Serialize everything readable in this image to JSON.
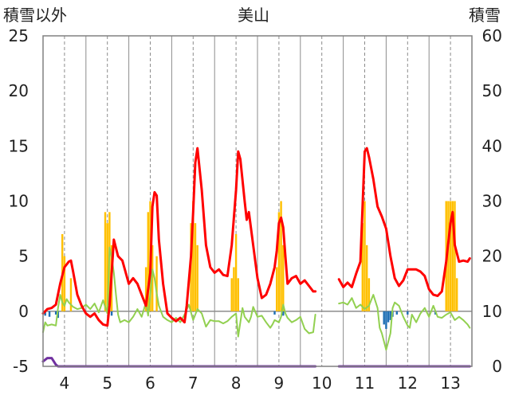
{
  "chart_data": {
    "type": "line",
    "title": "美山",
    "ylabel_left": "積雪以外",
    "ylabel_right": "積雪",
    "ylim_left": [
      -5,
      25
    ],
    "ylim_right": [
      0,
      60
    ],
    "xlim": [
      3.5,
      13.5
    ],
    "x_ticks": [
      "4",
      "5",
      "6",
      "7",
      "8",
      "9",
      "10",
      "11",
      "12",
      "13"
    ],
    "y_ticks_left": [
      "-5",
      "0",
      "5",
      "10",
      "15",
      "20",
      "25"
    ],
    "y_ticks_right": [
      "0",
      "10",
      "20",
      "30",
      "40",
      "50",
      "60"
    ],
    "grid": "vertical dashed at day centers, solid at day boundaries",
    "colors": {
      "temperature": "#ff0000",
      "precipitation": "#ffc000",
      "wind": "#92d050",
      "sunshine": "#1f6fb5",
      "snow_depth": "#7030a0"
    },
    "series": [
      {
        "key": "temperature",
        "axis": "left",
        "points": [
          [
            3.5,
            -0.2
          ],
          [
            3.6,
            0.2
          ],
          [
            3.7,
            0.3
          ],
          [
            3.8,
            0.6
          ],
          [
            3.9,
            2.5
          ],
          [
            4.0,
            4.0
          ],
          [
            4.1,
            4.5
          ],
          [
            4.15,
            4.6
          ],
          [
            4.2,
            3.6
          ],
          [
            4.3,
            1.5
          ],
          [
            4.4,
            0.5
          ],
          [
            4.5,
            -0.2
          ],
          [
            4.6,
            -0.5
          ],
          [
            4.7,
            -0.2
          ],
          [
            4.8,
            -0.8
          ],
          [
            4.9,
            -1.2
          ],
          [
            5.0,
            -1.3
          ],
          [
            5.05,
            0.5
          ],
          [
            5.1,
            3.5
          ],
          [
            5.15,
            6.5
          ],
          [
            5.25,
            5.0
          ],
          [
            5.35,
            4.6
          ],
          [
            5.45,
            3.2
          ],
          [
            5.5,
            2.5
          ],
          [
            5.6,
            3.0
          ],
          [
            5.7,
            2.5
          ],
          [
            5.8,
            1.5
          ],
          [
            5.9,
            0.5
          ],
          [
            6.0,
            3.5
          ],
          [
            6.05,
            9.5
          ],
          [
            6.1,
            10.8
          ],
          [
            6.15,
            10.5
          ],
          [
            6.2,
            6.5
          ],
          [
            6.3,
            2.5
          ],
          [
            6.4,
            -0.2
          ],
          [
            6.5,
            -0.6
          ],
          [
            6.6,
            -0.9
          ],
          [
            6.7,
            -0.6
          ],
          [
            6.8,
            -1.0
          ],
          [
            6.85,
            0.5
          ],
          [
            6.95,
            5.0
          ],
          [
            7.0,
            9.0
          ],
          [
            7.05,
            13.5
          ],
          [
            7.1,
            14.8
          ],
          [
            7.2,
            11.0
          ],
          [
            7.3,
            6.0
          ],
          [
            7.4,
            4.0
          ],
          [
            7.5,
            3.5
          ],
          [
            7.6,
            3.8
          ],
          [
            7.7,
            3.3
          ],
          [
            7.8,
            3.2
          ],
          [
            7.9,
            6.0
          ],
          [
            8.0,
            11.0
          ],
          [
            8.05,
            14.5
          ],
          [
            8.1,
            13.8
          ],
          [
            8.2,
            10.0
          ],
          [
            8.25,
            8.3
          ],
          [
            8.3,
            9.0
          ],
          [
            8.4,
            6.0
          ],
          [
            8.5,
            3.0
          ],
          [
            8.6,
            1.2
          ],
          [
            8.7,
            1.5
          ],
          [
            8.8,
            2.5
          ],
          [
            8.9,
            4.0
          ],
          [
            8.95,
            5.5
          ],
          [
            9.0,
            8.0
          ],
          [
            9.05,
            8.5
          ],
          [
            9.1,
            7.6
          ],
          [
            9.15,
            5.0
          ],
          [
            9.2,
            2.5
          ],
          [
            9.3,
            3.0
          ],
          [
            9.4,
            3.2
          ],
          [
            9.5,
            2.5
          ],
          [
            9.6,
            2.8
          ],
          [
            9.7,
            2.3
          ],
          [
            9.8,
            1.8
          ],
          [
            9.85,
            1.8
          ],
          null,
          [
            10.4,
            2.9
          ],
          [
            10.5,
            2.2
          ],
          [
            10.6,
            2.6
          ],
          [
            10.7,
            2.2
          ],
          [
            10.8,
            3.4
          ],
          [
            10.9,
            4.5
          ],
          [
            10.95,
            9.5
          ],
          [
            11.0,
            14.5
          ],
          [
            11.05,
            14.8
          ],
          [
            11.1,
            14.0
          ],
          [
            11.2,
            12.0
          ],
          [
            11.3,
            9.5
          ],
          [
            11.4,
            8.6
          ],
          [
            11.5,
            7.5
          ],
          [
            11.6,
            5.0
          ],
          [
            11.7,
            3.0
          ],
          [
            11.8,
            2.3
          ],
          [
            11.9,
            2.8
          ],
          [
            12.0,
            3.8
          ],
          [
            12.1,
            3.8
          ],
          [
            12.2,
            3.8
          ],
          [
            12.3,
            3.6
          ],
          [
            12.4,
            3.2
          ],
          [
            12.5,
            2.0
          ],
          [
            12.6,
            1.5
          ],
          [
            12.7,
            1.4
          ],
          [
            12.8,
            1.8
          ],
          [
            12.9,
            4.5
          ],
          [
            13.0,
            8.0
          ],
          [
            13.05,
            9.0
          ],
          [
            13.1,
            6.0
          ],
          [
            13.2,
            4.5
          ],
          [
            13.3,
            4.6
          ],
          [
            13.4,
            4.5
          ],
          [
            13.45,
            4.8
          ]
        ]
      },
      {
        "key": "wind",
        "axis": "left",
        "points": [
          [
            3.5,
            -1.9
          ],
          [
            3.55,
            -1.0
          ],
          [
            3.6,
            -1.3
          ],
          [
            3.7,
            -1.2
          ],
          [
            3.8,
            -1.3
          ],
          [
            3.85,
            0.3
          ],
          [
            3.9,
            1.5
          ],
          [
            3.95,
            0.8
          ],
          [
            4.0,
            0.5
          ],
          [
            4.05,
            1.1
          ],
          [
            4.1,
            0.8
          ],
          [
            4.2,
            0.4
          ],
          [
            4.3,
            0.2
          ],
          [
            4.4,
            0.3
          ],
          [
            4.5,
            0.6
          ],
          [
            4.6,
            0.2
          ],
          [
            4.7,
            0.7
          ],
          [
            4.8,
            -0.1
          ],
          [
            4.9,
            1.0
          ],
          [
            5.0,
            -0.2
          ],
          [
            5.05,
            5.8
          ],
          [
            5.1,
            4.9
          ],
          [
            5.15,
            3.5
          ],
          [
            5.2,
            1.5
          ],
          [
            5.25,
            -0.3
          ],
          [
            5.3,
            -1.0
          ],
          [
            5.4,
            -0.8
          ],
          [
            5.5,
            -1.0
          ],
          [
            5.6,
            -0.5
          ],
          [
            5.7,
            0.2
          ],
          [
            5.8,
            -0.5
          ],
          [
            5.9,
            0.8
          ],
          [
            5.95,
            -0.4
          ],
          [
            6.0,
            1.5
          ],
          [
            6.05,
            3.8
          ],
          [
            6.1,
            3.0
          ],
          [
            6.15,
            1.6
          ],
          [
            6.2,
            0.5
          ],
          [
            6.3,
            -0.5
          ],
          [
            6.4,
            -0.8
          ],
          [
            6.5,
            -1.0
          ],
          [
            6.6,
            -0.6
          ],
          [
            6.7,
            -1.0
          ],
          [
            6.8,
            -0.3
          ],
          [
            6.9,
            0.6
          ],
          [
            7.0,
            -0.8
          ],
          [
            7.1,
            0.2
          ],
          [
            7.2,
            -0.2
          ],
          [
            7.3,
            -1.4
          ],
          [
            7.4,
            -0.8
          ],
          [
            7.5,
            -0.9
          ],
          [
            7.6,
            -0.9
          ],
          [
            7.7,
            -1.1
          ],
          [
            7.8,
            -0.9
          ],
          [
            7.9,
            -0.5
          ],
          [
            8.0,
            -0.2
          ],
          [
            8.05,
            -2.3
          ],
          [
            8.1,
            -1.0
          ],
          [
            8.15,
            0.3
          ],
          [
            8.2,
            -0.5
          ],
          [
            8.3,
            -1.0
          ],
          [
            8.35,
            -0.5
          ],
          [
            8.4,
            0.4
          ],
          [
            8.5,
            -0.5
          ],
          [
            8.6,
            -0.4
          ],
          [
            8.7,
            -1.0
          ],
          [
            8.8,
            -1.5
          ],
          [
            8.85,
            -1.2
          ],
          [
            8.9,
            -0.8
          ],
          [
            9.0,
            -1.0
          ],
          [
            9.05,
            -0.5
          ],
          [
            9.1,
            0.6
          ],
          [
            9.15,
            -0.2
          ],
          [
            9.2,
            -0.6
          ],
          [
            9.3,
            -1.0
          ],
          [
            9.4,
            -0.8
          ],
          [
            9.5,
            -0.5
          ],
          [
            9.6,
            -1.6
          ],
          [
            9.7,
            -2.0
          ],
          [
            9.8,
            -1.9
          ],
          [
            9.85,
            -0.3
          ],
          null,
          [
            10.4,
            0.7
          ],
          [
            10.5,
            0.8
          ],
          [
            10.6,
            0.6
          ],
          [
            10.7,
            1.2
          ],
          [
            10.8,
            0.3
          ],
          [
            10.9,
            0.6
          ],
          [
            11.0,
            0.2
          ],
          [
            11.1,
            0.5
          ],
          [
            11.2,
            1.5
          ],
          [
            11.3,
            0.3
          ],
          [
            11.35,
            -1.5
          ],
          [
            11.4,
            -2.0
          ],
          [
            11.5,
            -3.5
          ],
          [
            11.6,
            -2.0
          ],
          [
            11.65,
            0.3
          ],
          [
            11.7,
            0.8
          ],
          [
            11.8,
            0.5
          ],
          [
            11.9,
            -0.5
          ],
          [
            12.0,
            -1.3
          ],
          [
            12.05,
            -1.5
          ],
          [
            12.1,
            -0.3
          ],
          [
            12.2,
            -1.0
          ],
          [
            12.3,
            -0.2
          ],
          [
            12.4,
            0.3
          ],
          [
            12.5,
            -0.5
          ],
          [
            12.6,
            0.5
          ],
          [
            12.7,
            -0.5
          ],
          [
            12.8,
            -0.6
          ],
          [
            12.9,
            -0.3
          ],
          [
            13.0,
            -0.1
          ],
          [
            13.1,
            -0.8
          ],
          [
            13.2,
            -0.5
          ],
          [
            13.3,
            -0.8
          ],
          [
            13.4,
            -1.2
          ],
          [
            13.45,
            -1.5
          ]
        ]
      },
      {
        "key": "precipitation",
        "axis": "left",
        "bars": [
          [
            3.95,
            7.0
          ],
          [
            4.0,
            5.0
          ],
          [
            4.15,
            3.0
          ],
          [
            4.95,
            9.0
          ],
          [
            5.0,
            8.0
          ],
          [
            5.05,
            9.0
          ],
          [
            5.1,
            6.0
          ],
          [
            5.9,
            4.0
          ],
          [
            5.95,
            9.0
          ],
          [
            6.0,
            10.0
          ],
          [
            6.05,
            6.0
          ],
          [
            6.15,
            5.0
          ],
          [
            6.95,
            8.0
          ],
          [
            7.0,
            10.0
          ],
          [
            7.05,
            8.0
          ],
          [
            7.1,
            6.0
          ],
          [
            7.9,
            3.0
          ],
          [
            7.95,
            4.0
          ],
          [
            8.0,
            7.0
          ],
          [
            8.05,
            3.0
          ],
          [
            8.95,
            4.0
          ],
          [
            9.0,
            9.0
          ],
          [
            9.05,
            10.0
          ],
          [
            9.1,
            6.0
          ],
          [
            10.95,
            8.0
          ],
          [
            11.0,
            10.0
          ],
          [
            11.05,
            6.0
          ],
          [
            11.1,
            3.0
          ],
          [
            12.9,
            10.0
          ],
          [
            12.95,
            10.0
          ],
          [
            13.0,
            10.0
          ],
          [
            13.05,
            10.0
          ],
          [
            13.1,
            10.0
          ],
          [
            13.15,
            3.0
          ]
        ]
      },
      {
        "key": "sunshine",
        "axis": "left",
        "bars": [
          [
            3.55,
            -0.4
          ],
          [
            3.65,
            -0.5
          ],
          [
            3.8,
            -0.3
          ],
          [
            3.85,
            -0.6
          ],
          [
            5.1,
            -0.4
          ],
          [
            8.9,
            -0.3
          ],
          [
            9.1,
            -0.4
          ],
          [
            11.45,
            -1.2
          ],
          [
            11.5,
            -1.6
          ],
          [
            11.55,
            -1.0
          ],
          [
            11.6,
            -0.8
          ],
          [
            11.65,
            -0.5
          ],
          [
            11.75,
            -0.3
          ],
          [
            12.0,
            -0.3
          ],
          [
            12.65,
            -0.3
          ]
        ]
      },
      {
        "key": "snow_depth",
        "axis": "right",
        "points": [
          [
            3.5,
            0.9
          ],
          [
            3.6,
            1.5
          ],
          [
            3.7,
            1.5
          ],
          [
            3.8,
            0.3
          ],
          [
            3.85,
            0
          ],
          [
            9.85,
            0
          ],
          null,
          [
            10.4,
            0
          ],
          [
            13.45,
            0
          ]
        ]
      }
    ]
  }
}
